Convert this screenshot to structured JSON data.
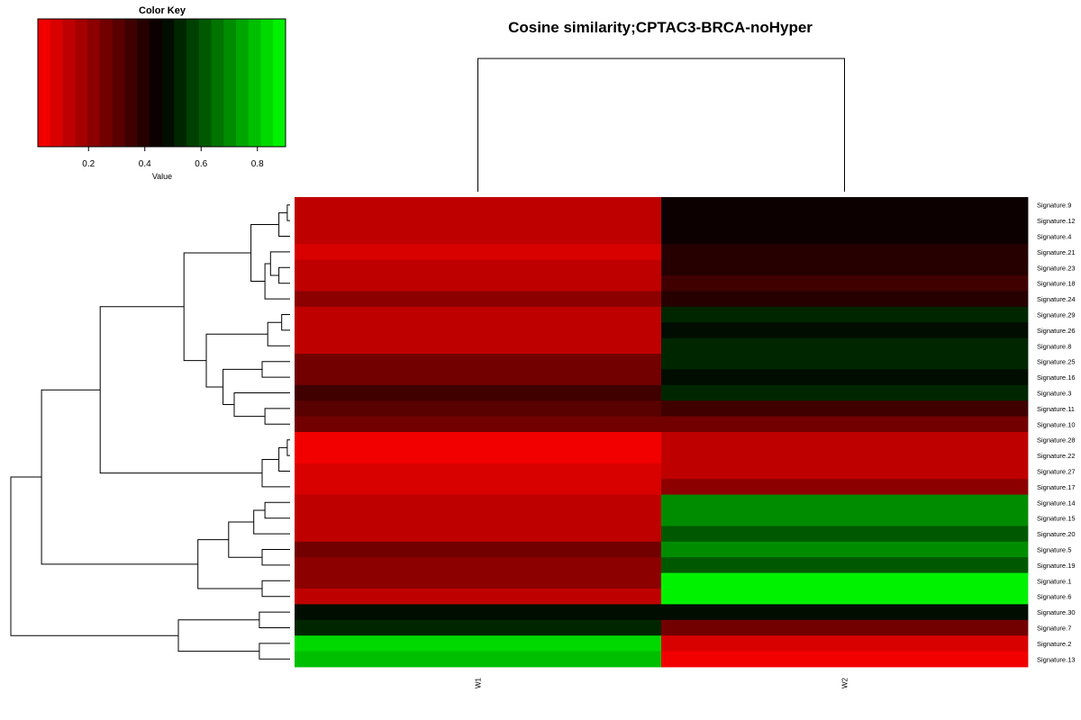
{
  "chart_data": {
    "type": "heatmap",
    "title": "Cosine similarity;CPTAC3-BRCA-noHyper",
    "columns": [
      "W1",
      "W2"
    ],
    "rows": [
      "Signature.9",
      "Signature.12",
      "Signature.4",
      "Signature.21",
      "Signature.23",
      "Signature.18",
      "Signature.24",
      "Signature.29",
      "Signature.26",
      "Signature.8",
      "Signature.25",
      "Signature.16",
      "Signature.3",
      "Signature.11",
      "Signature.10",
      "Signature.28",
      "Signature.22",
      "Signature.27",
      "Signature.17",
      "Signature.14",
      "Signature.15",
      "Signature.20",
      "Signature.5",
      "Signature.19",
      "Signature.1",
      "Signature.6",
      "Signature.30",
      "Signature.7",
      "Signature.2",
      "Signature.13"
    ],
    "values": [
      [
        0.11,
        0.44
      ],
      [
        0.11,
        0.44
      ],
      [
        0.11,
        0.44
      ],
      [
        0.07,
        0.38
      ],
      [
        0.11,
        0.38
      ],
      [
        0.15,
        0.33
      ],
      [
        0.2,
        0.38
      ],
      [
        0.11,
        0.54
      ],
      [
        0.11,
        0.46
      ],
      [
        0.15,
        0.54
      ],
      [
        0.24,
        0.54
      ],
      [
        0.24,
        0.46
      ],
      [
        0.33,
        0.54
      ],
      [
        0.29,
        0.33
      ],
      [
        0.24,
        0.24
      ],
      [
        0.03,
        0.15
      ],
      [
        0.03,
        0.15
      ],
      [
        0.07,
        0.11
      ],
      [
        0.07,
        0.2
      ],
      [
        0.15,
        0.72
      ],
      [
        0.11,
        0.72
      ],
      [
        0.11,
        0.63
      ],
      [
        0.24,
        0.72
      ],
      [
        0.2,
        0.63
      ],
      [
        0.2,
        0.9
      ],
      [
        0.11,
        0.9
      ],
      [
        0.46,
        0.46
      ],
      [
        0.54,
        0.24
      ],
      [
        0.85,
        0.07
      ],
      [
        0.81,
        0.03
      ]
    ],
    "color_scale": {
      "low": "#FF0000",
      "mid": "#000000",
      "high": "#00FF00",
      "range": [
        0.02,
        0.9
      ]
    },
    "color_key": {
      "title": "Color Key",
      "xlabel": "Value",
      "ticks": [
        "0.2",
        "0.4",
        "0.6",
        "0.8"
      ],
      "tick_values": [
        0.2,
        0.4,
        0.6,
        0.8
      ],
      "range": [
        0.02,
        0.9
      ],
      "bins": 20
    },
    "col_dendrogram": {
      "merges": [
        [
          -1,
          -2,
          1.0
        ]
      ]
    },
    "row_dendrogram": {
      "merges": [
        [
          -1,
          -2,
          0.01
        ],
        [
          -3,
          1,
          0.04
        ],
        [
          -5,
          -6,
          0.04
        ],
        [
          -4,
          3,
          0.07
        ],
        [
          4,
          -7,
          0.09
        ],
        [
          2,
          5,
          0.14
        ],
        [
          -8,
          -9,
          0.03
        ],
        [
          7,
          -10,
          0.08
        ],
        [
          -11,
          -12,
          0.1
        ],
        [
          -14,
          -15,
          0.09
        ],
        [
          -13,
          10,
          0.2
        ],
        [
          9,
          11,
          0.24
        ],
        [
          8,
          12,
          0.3
        ],
        [
          6,
          13,
          0.38
        ],
        [
          -16,
          -17,
          0.01
        ],
        [
          15,
          -18,
          0.04
        ],
        [
          16,
          -19,
          0.1
        ],
        [
          14,
          17,
          0.68
        ],
        [
          -20,
          -21,
          0.09
        ],
        [
          19,
          -22,
          0.13
        ],
        [
          -23,
          -24,
          0.1
        ],
        [
          20,
          21,
          0.22
        ],
        [
          -25,
          -26,
          0.1
        ],
        [
          22,
          23,
          0.33
        ],
        [
          18,
          24,
          0.89
        ],
        [
          -27,
          -28,
          0.11
        ],
        [
          -29,
          -30,
          0.11
        ],
        [
          26,
          27,
          0.4
        ],
        [
          25,
          28,
          1.0
        ]
      ]
    }
  }
}
